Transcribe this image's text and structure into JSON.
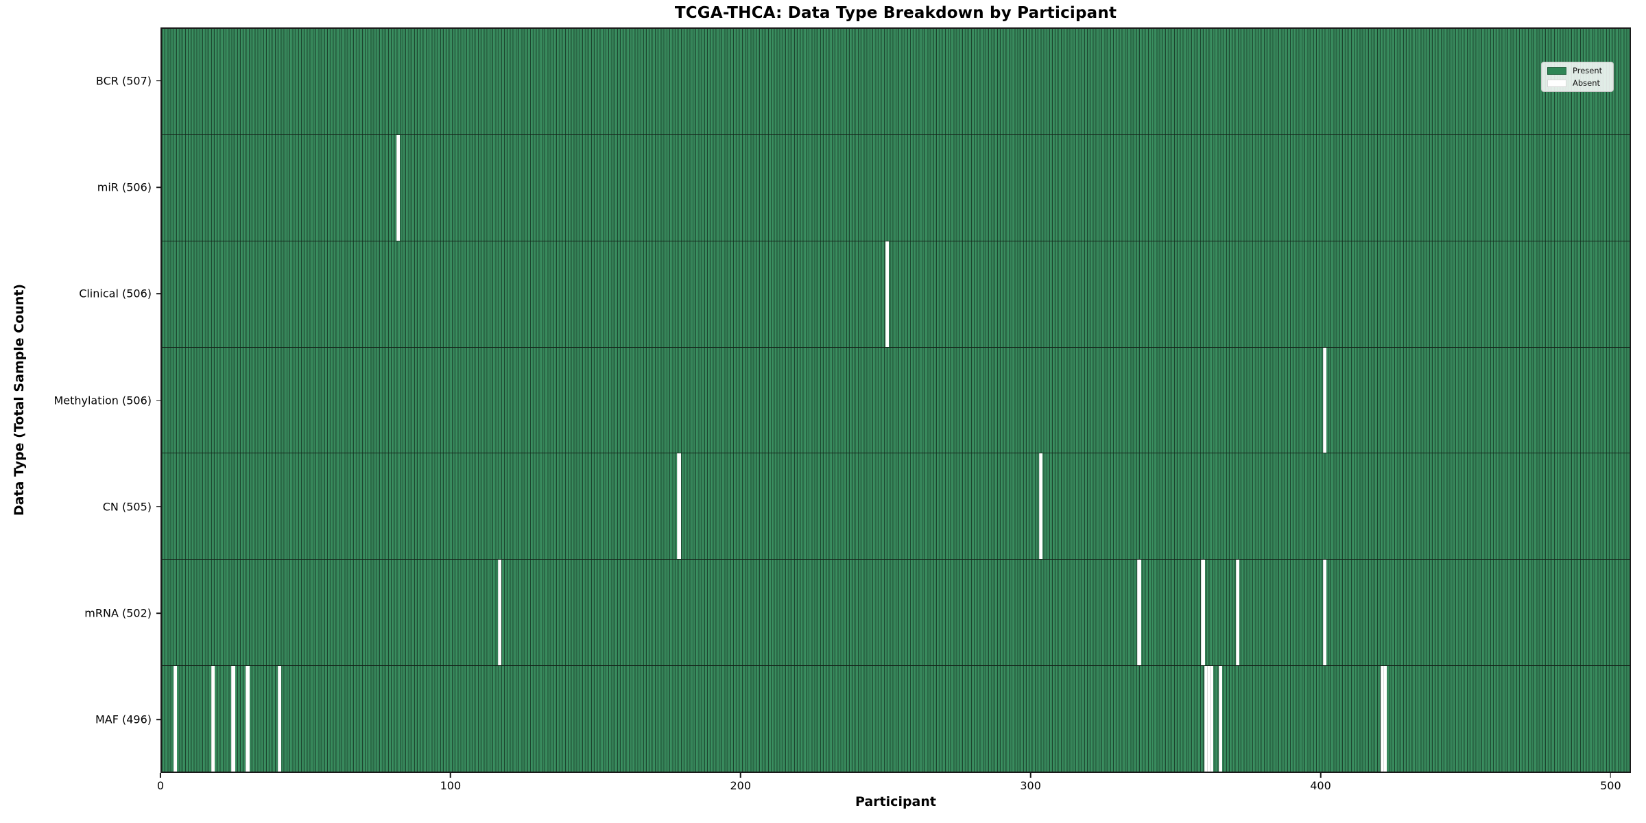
{
  "figure": {
    "title": "TCGA-THCA: Data Type Breakdown by Participant",
    "xlabel": "Participant",
    "ylabel": "Data Type (Total Sample Count)"
  },
  "legend": {
    "present_label": "Present",
    "absent_label": "Absent",
    "position": "upper right"
  },
  "colors": {
    "present_fill": "#3a8f60",
    "bar_edge": "#1f5136",
    "absent_fill": "#ffffff",
    "row_separator": "#14241a",
    "spine": "#1a1a1a"
  },
  "chart_data": {
    "type": "heatmap",
    "title": "TCGA-THCA: Data Type Breakdown by Participant",
    "xlabel": "Participant",
    "ylabel": "Data Type (Total Sample Count)",
    "x_ticks": [
      0,
      100,
      200,
      300,
      400,
      500
    ],
    "xlim": [
      0,
      507
    ],
    "n_participants": 507,
    "grid": false,
    "legend_entries": [
      "Present",
      "Absent"
    ],
    "legend_position": "upper right",
    "rows": [
      {
        "data_type": "BCR",
        "label": "BCR (507)",
        "present_count": 507,
        "absent_count": 0,
        "absent_participants": []
      },
      {
        "data_type": "miR",
        "label": "miR (506)",
        "present_count": 506,
        "absent_count": 1,
        "absent_participants": [
          81
        ]
      },
      {
        "data_type": "Clinical",
        "label": "Clinical (506)",
        "present_count": 506,
        "absent_count": 1,
        "absent_participants": [
          250
        ]
      },
      {
        "data_type": "Methylation",
        "label": "Methylation (506)",
        "present_count": 506,
        "absent_count": 1,
        "absent_participants": [
          401
        ]
      },
      {
        "data_type": "CN",
        "label": "CN (505)",
        "present_count": 505,
        "absent_count": 2,
        "absent_participants": [
          178,
          303
        ]
      },
      {
        "data_type": "mRNA",
        "label": "mRNA (502)",
        "present_count": 502,
        "absent_count": 5,
        "absent_participants": [
          116,
          337,
          359,
          371,
          401
        ]
      },
      {
        "data_type": "MAF",
        "label": "MAF (496)",
        "present_count": 496,
        "absent_count": 11,
        "absent_participants": [
          4,
          17,
          24,
          29,
          40,
          360,
          361,
          362,
          365,
          421,
          422
        ]
      }
    ]
  }
}
